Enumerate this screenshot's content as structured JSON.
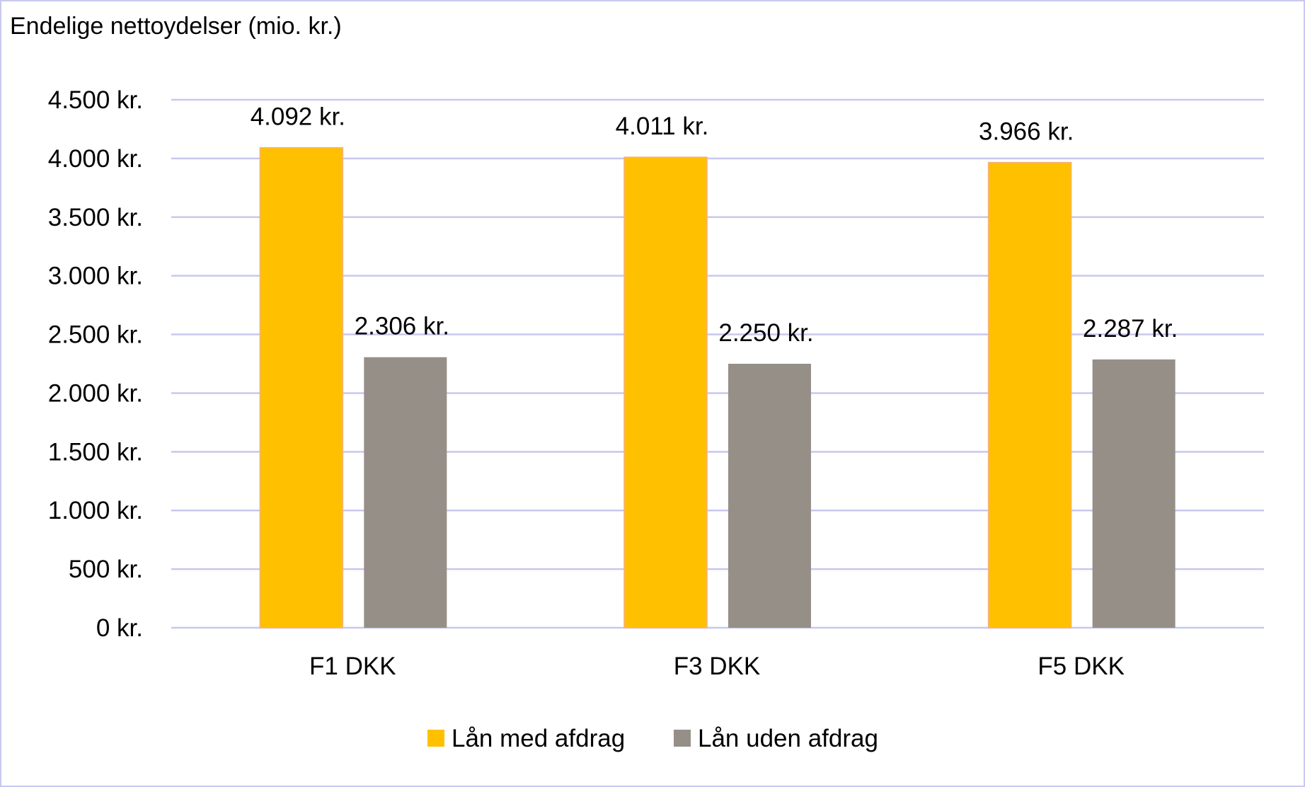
{
  "chart_data": {
    "type": "bar",
    "title": "Endelige nettoydelser (mio. kr.)",
    "xlabel": "",
    "ylabel": "",
    "categories": [
      "F1 DKK",
      "F3 DKK",
      "F5 DKK"
    ],
    "series": [
      {
        "name": "Lån med afdrag",
        "values": [
          4092,
          4011,
          3966
        ],
        "labels": [
          "4.092 kr.",
          "4.011 kr.",
          "3.966 kr."
        ],
        "color": "#FFC000"
      },
      {
        "name": "Lån uden afdrag",
        "values": [
          2306,
          2250,
          2287
        ],
        "labels": [
          "2.306 kr.",
          "2.250 kr.",
          "2.287 kr."
        ],
        "color": "#968F87"
      }
    ],
    "ylim": [
      0,
      4500
    ],
    "yticks": [
      0,
      500,
      1000,
      1500,
      2000,
      2500,
      3000,
      3500,
      4000,
      4500
    ],
    "ytick_labels": [
      "0 kr.",
      "500 kr.",
      "1.000 kr.",
      "1.500 kr.",
      "2.000 kr.",
      "2.500 kr.",
      "3.000 kr.",
      "3.500 kr.",
      "4.000 kr.",
      "4.500 kr."
    ],
    "grid": true,
    "legend_position": "bottom",
    "colors": {
      "gridline": "#C8C8EE",
      "border": "#C9C9EF"
    }
  }
}
